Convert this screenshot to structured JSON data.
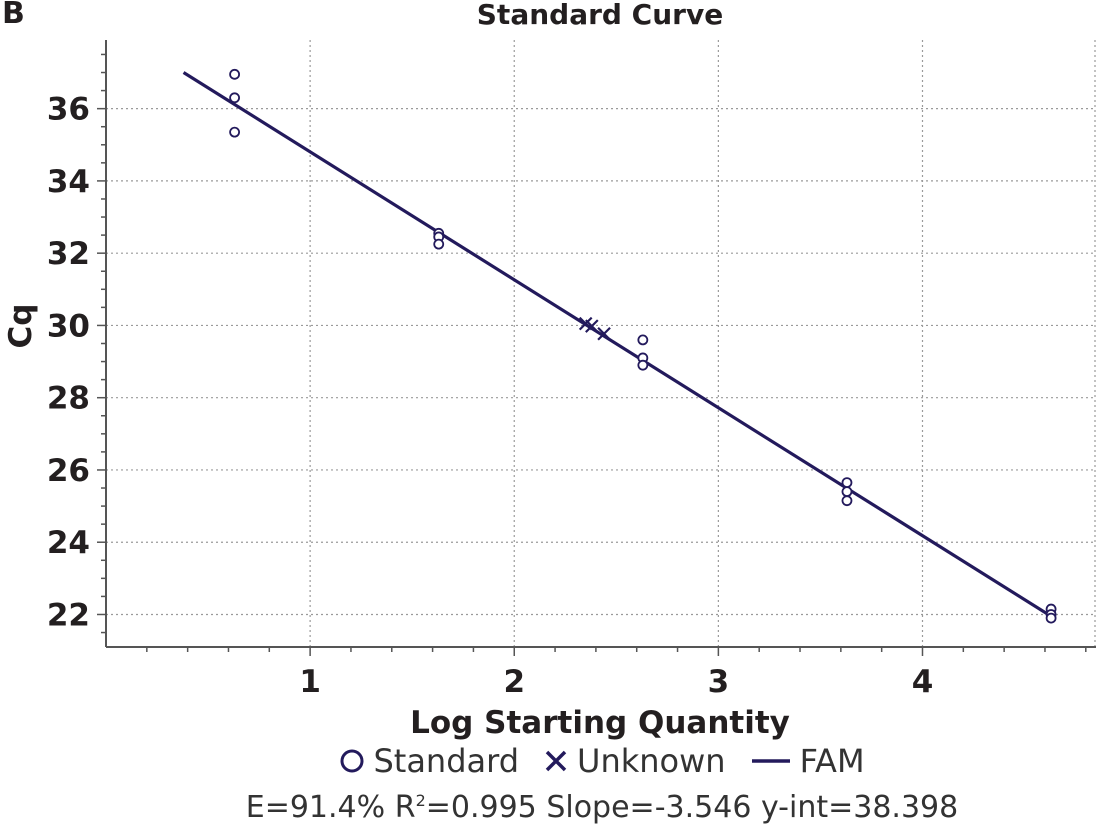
{
  "panel_label": "B",
  "stats": {
    "efficiency": "E=91.4%",
    "r2_prefix": "R",
    "r2_sup": "2",
    "r2_value": "=0.995",
    "slope": "Slope=-3.546",
    "yint": "y-int=38.398"
  },
  "colors": {
    "series": "#231a5c",
    "grid": "#9a9a9a",
    "axis": "#555555"
  },
  "chart_data": {
    "type": "scatter",
    "title": "Standard Curve",
    "xlabel": "Log Starting Quantity",
    "ylabel": "Cq",
    "xlim": [
      0,
      4.85
    ],
    "ylim": [
      21.1,
      37.9
    ],
    "xticks": [
      1,
      2,
      3,
      4
    ],
    "yticks": [
      22,
      24,
      26,
      28,
      30,
      32,
      34,
      36
    ],
    "grid": true,
    "legend_position": "bottom",
    "legend": [
      "Standard",
      "Unknown",
      "FAM"
    ],
    "series": [
      {
        "name": "Standard",
        "marker": "circle",
        "points": [
          [
            0.63,
            36.95
          ],
          [
            0.63,
            36.3
          ],
          [
            0.63,
            35.35
          ],
          [
            1.63,
            32.55
          ],
          [
            1.63,
            32.45
          ],
          [
            1.63,
            32.25
          ],
          [
            2.63,
            29.6
          ],
          [
            2.63,
            29.1
          ],
          [
            2.63,
            28.9
          ],
          [
            3.63,
            25.65
          ],
          [
            3.63,
            25.4
          ],
          [
            3.63,
            25.15
          ],
          [
            4.63,
            22.15
          ],
          [
            4.63,
            22.0
          ],
          [
            4.63,
            21.9
          ]
        ]
      },
      {
        "name": "Unknown",
        "marker": "x",
        "points": [
          [
            2.35,
            30.05
          ],
          [
            2.38,
            29.98
          ],
          [
            2.44,
            29.77
          ]
        ]
      },
      {
        "name": "FAM",
        "type": "line",
        "points": [
          [
            0.38,
            37.0
          ],
          [
            4.63,
            21.95
          ]
        ]
      }
    ]
  }
}
